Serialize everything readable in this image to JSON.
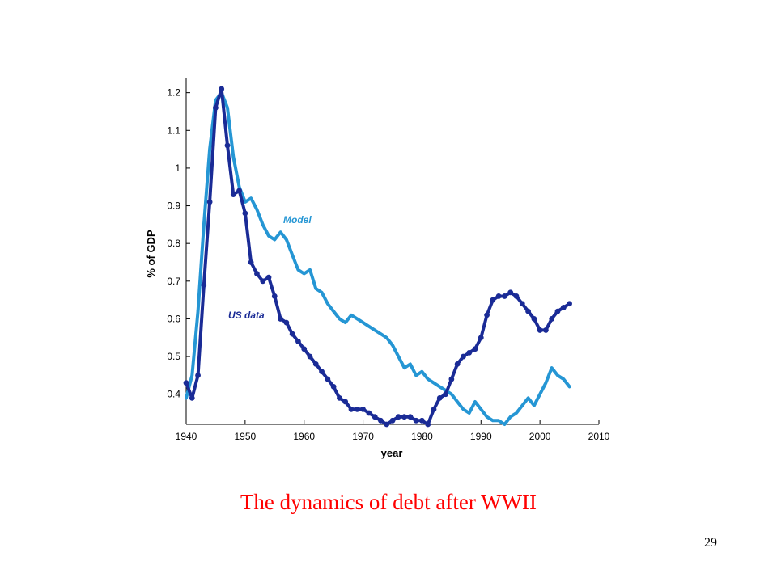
{
  "slide": {
    "caption": "The dynamics of debt after WWII",
    "page_number": "29"
  },
  "chart_data": {
    "type": "line",
    "title": "",
    "xlabel": "year",
    "ylabel": "% of GDP",
    "xlim": [
      1940,
      2010
    ],
    "ylim": [
      0.32,
      1.24
    ],
    "xticks": [
      1940,
      1950,
      1960,
      1970,
      1980,
      1990,
      2000,
      2010
    ],
    "yticks": [
      0.4,
      0.5,
      0.6,
      0.7,
      0.8,
      0.9,
      1.0,
      1.1,
      1.2
    ],
    "ytick_labels": [
      "0.4",
      "0.5",
      "0.6",
      "0.7",
      "0.8",
      "0.9",
      "1",
      "1.1",
      "1.2"
    ],
    "grid": false,
    "series": [
      {
        "name": "Model",
        "color": "#2596d4",
        "markers": false,
        "x": [
          1940,
          1941,
          1942,
          1943,
          1944,
          1945,
          1946,
          1947,
          1948,
          1949,
          1950,
          1951,
          1952,
          1953,
          1954,
          1955,
          1956,
          1957,
          1958,
          1959,
          1960,
          1961,
          1962,
          1963,
          1964,
          1965,
          1966,
          1967,
          1968,
          1969,
          1970,
          1971,
          1972,
          1973,
          1974,
          1975,
          1976,
          1977,
          1978,
          1979,
          1980,
          1981,
          1982,
          1983,
          1984,
          1985,
          1986,
          1987,
          1988,
          1989,
          1990,
          1991,
          1992,
          1993,
          1994,
          1995,
          1996,
          1997,
          1998,
          1999,
          2000,
          2001,
          2002,
          2003,
          2004,
          2005
        ],
        "values": [
          0.39,
          0.45,
          0.62,
          0.85,
          1.05,
          1.18,
          1.2,
          1.16,
          1.03,
          0.95,
          0.91,
          0.92,
          0.89,
          0.85,
          0.82,
          0.81,
          0.83,
          0.81,
          0.77,
          0.73,
          0.72,
          0.73,
          0.68,
          0.67,
          0.64,
          0.62,
          0.6,
          0.59,
          0.61,
          0.6,
          0.59,
          0.58,
          0.57,
          0.56,
          0.55,
          0.53,
          0.5,
          0.47,
          0.48,
          0.45,
          0.46,
          0.44,
          0.43,
          0.42,
          0.41,
          0.4,
          0.38,
          0.36,
          0.35,
          0.38,
          0.36,
          0.34,
          0.33,
          0.33,
          0.32,
          0.34,
          0.35,
          0.37,
          0.39,
          0.37,
          0.4,
          0.43,
          0.47,
          0.45,
          0.44,
          0.42
        ]
      },
      {
        "name": "US data",
        "color": "#1a2b96",
        "markers": true,
        "x": [
          1940,
          1941,
          1942,
          1943,
          1944,
          1945,
          1946,
          1947,
          1948,
          1949,
          1950,
          1951,
          1952,
          1953,
          1954,
          1955,
          1956,
          1957,
          1958,
          1959,
          1960,
          1961,
          1962,
          1963,
          1964,
          1965,
          1966,
          1967,
          1968,
          1969,
          1970,
          1971,
          1972,
          1973,
          1974,
          1975,
          1976,
          1977,
          1978,
          1979,
          1980,
          1981,
          1982,
          1983,
          1984,
          1985,
          1986,
          1987,
          1988,
          1989,
          1990,
          1991,
          1992,
          1993,
          1994,
          1995,
          1996,
          1997,
          1998,
          1999,
          2000,
          2001,
          2002,
          2003,
          2004,
          2005
        ],
        "values": [
          0.43,
          0.39,
          0.45,
          0.69,
          0.91,
          1.16,
          1.21,
          1.06,
          0.93,
          0.94,
          0.88,
          0.75,
          0.72,
          0.7,
          0.71,
          0.66,
          0.6,
          0.59,
          0.56,
          0.54,
          0.52,
          0.5,
          0.48,
          0.46,
          0.44,
          0.42,
          0.39,
          0.38,
          0.36,
          0.36,
          0.36,
          0.35,
          0.34,
          0.33,
          0.32,
          0.33,
          0.34,
          0.34,
          0.34,
          0.33,
          0.33,
          0.32,
          0.36,
          0.39,
          0.4,
          0.44,
          0.48,
          0.5,
          0.51,
          0.52,
          0.55,
          0.61,
          0.65,
          0.66,
          0.66,
          0.67,
          0.66,
          0.64,
          0.62,
          0.6,
          0.57,
          0.57,
          0.6,
          0.62,
          0.63,
          0.64
        ]
      }
    ]
  }
}
